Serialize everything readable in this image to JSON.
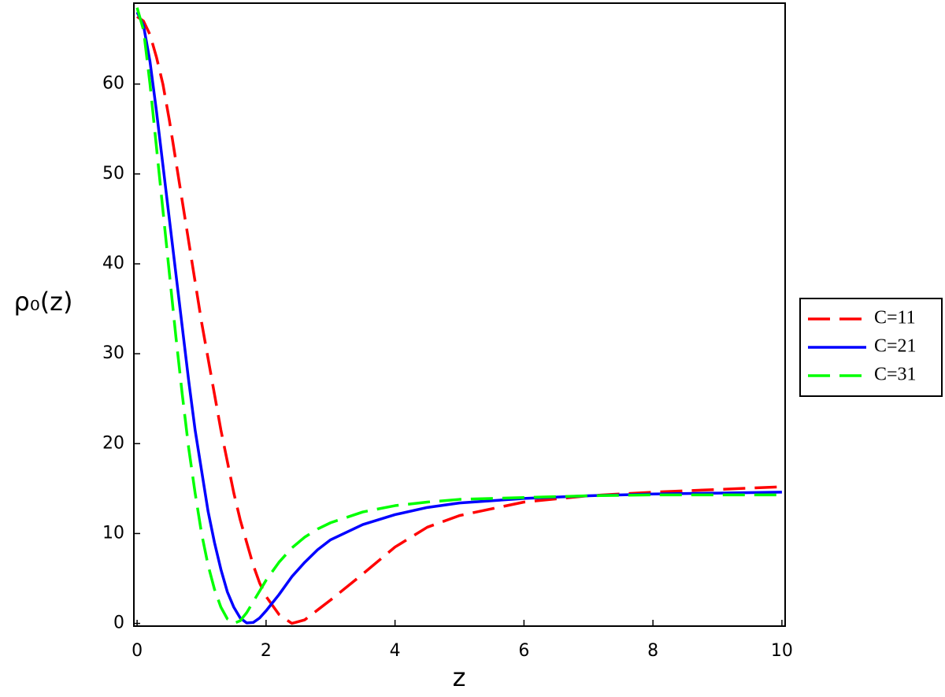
{
  "chart_data": {
    "type": "line",
    "x_label": "z",
    "y_label": "ρ₀(z)",
    "x": [
      0,
      0.1,
      0.2,
      0.3,
      0.4,
      0.5,
      0.6,
      0.7,
      0.8,
      0.9,
      1.0,
      1.1,
      1.2,
      1.3,
      1.4,
      1.5,
      1.6,
      1.7,
      1.8,
      1.9,
      2.0,
      2.2,
      2.4,
      2.6,
      2.8,
      3,
      3.5,
      4,
      4.5,
      5,
      6,
      7,
      8,
      9,
      10
    ],
    "series": [
      {
        "name": "C=11",
        "color": "#ff0000",
        "dash": true,
        "values": [
          67.5,
          67,
          65.5,
          63,
          60,
          56,
          51.5,
          47,
          42.5,
          38,
          33.5,
          29.5,
          25.5,
          21.5,
          18,
          14.5,
          11.5,
          9,
          6.5,
          4.5,
          3,
          1,
          0,
          0.4,
          1.5,
          2.6,
          5.5,
          8.5,
          10.7,
          12,
          13.5,
          14.2,
          14.6,
          14.9,
          15.2
        ]
      },
      {
        "name": "C=21",
        "color": "#0000ff",
        "dash": false,
        "values": [
          68,
          66.5,
          62.5,
          57,
          51,
          45,
          39,
          33,
          27,
          21.5,
          17,
          12.5,
          9,
          6,
          3.5,
          1.8,
          0.6,
          0.05,
          0.1,
          0.6,
          1.4,
          3.2,
          5.2,
          6.8,
          8.2,
          9.3,
          11,
          12.1,
          12.9,
          13.4,
          13.9,
          14.2,
          14.4,
          14.5,
          14.6
        ]
      },
      {
        "name": "C=31",
        "color": "#00ff00",
        "dash": true,
        "values": [
          68.5,
          66,
          60,
          53,
          46,
          39,
          32,
          25.5,
          19.5,
          14.5,
          10,
          6.5,
          3.8,
          1.8,
          0.5,
          0,
          0.3,
          1.2,
          2.4,
          3.6,
          4.8,
          6.8,
          8.4,
          9.6,
          10.5,
          11.2,
          12.4,
          13.1,
          13.5,
          13.8,
          14,
          14.2,
          14.3,
          14.3,
          14.3
        ]
      }
    ],
    "xlim": [
      -0.05,
      10.05
    ],
    "ylim": [
      -0.3,
      69
    ],
    "xticks": [
      0,
      2,
      4,
      6,
      8,
      10
    ],
    "yticks": [
      0,
      10,
      20,
      30,
      40,
      50,
      60
    ],
    "legend": "right"
  }
}
